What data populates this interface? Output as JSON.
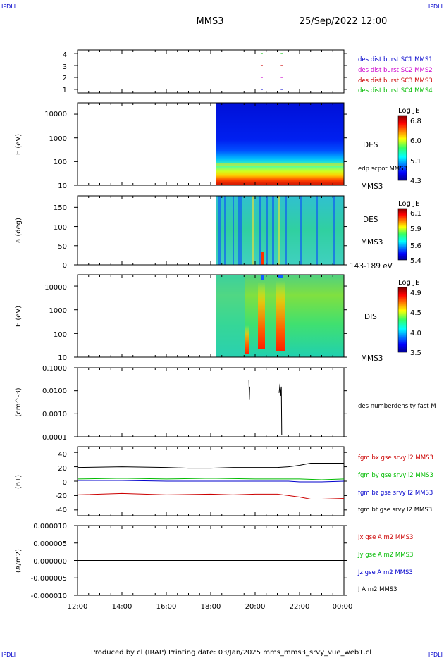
{
  "header": {
    "corner_tl": "IPDLI",
    "corner_tr": "IPDLI",
    "corner_bl": "IPDLI",
    "corner_br": "IPDLI",
    "spacecraft": "MMS3",
    "datetime": "25/Sep/2022 12:00"
  },
  "footer": {
    "credit": "Produced by cl (IRAP)   Printing date: 03/Jan/2025   mms_mms3_srvy_vue_web1.cl"
  },
  "chart_data": {
    "type": "multi-panel time series",
    "x_axis": {
      "range": [
        "12:00",
        "00:00"
      ],
      "tick_labels": [
        "12:00",
        "14:00",
        "16:00",
        "18:00",
        "20:00",
        "22:00",
        "00:00"
      ]
    },
    "panels": [
      {
        "id": "burst",
        "type": "scatter",
        "ylabel": "",
        "yticks": [
          "1",
          "2",
          "3",
          "4"
        ],
        "ylim": [
          0.7,
          4.3
        ],
        "legend": [
          {
            "name": "des dist burst SC1 MMS1",
            "color": "#0000cc",
            "row": 1
          },
          {
            "name": "des dist burst SC2 MMS2",
            "color": "#cc00cc",
            "row": 2
          },
          {
            "name": "des dist burst SC3 MMS3",
            "color": "#cc0000",
            "row": 3
          },
          {
            "name": "des dist burst SC4 MMS4",
            "color": "#00bb00",
            "row": 4
          }
        ],
        "events_hours": [
          20.3,
          21.2
        ]
      },
      {
        "id": "des-energy",
        "type": "heatmap",
        "ylabel": "E (eV)",
        "scale": "log",
        "ylim": [
          10,
          30000
        ],
        "yticks": [
          "10",
          "100",
          "1000",
          "10000"
        ],
        "data_start_hour": 18.25,
        "right_labels": [
          "DES",
          "edp scpot MMS3",
          "MMS3"
        ],
        "colorbar": {
          "title": "Log JE",
          "ticks": [
            "6.8",
            "6.0",
            "5.1",
            "4.3"
          ]
        }
      },
      {
        "id": "des-pitch",
        "type": "heatmap",
        "ylabel": "a (deg)",
        "ylim": [
          0,
          180
        ],
        "yticks": [
          "0",
          "50",
          "100",
          "150"
        ],
        "data_start_hour": 18.25,
        "right_labels": [
          "DES",
          "MMS3",
          "143-189 eV"
        ],
        "colorbar": {
          "title": "Log JE",
          "ticks": [
            "6.1",
            "5.9",
            "5.6",
            "5.4"
          ]
        }
      },
      {
        "id": "dis-energy",
        "type": "heatmap",
        "ylabel": "E (eV)",
        "scale": "log",
        "ylim": [
          10,
          30000
        ],
        "yticks": [
          "10",
          "100",
          "1000",
          "10000"
        ],
        "data_start_hour": 18.25,
        "right_labels": [
          "DIS",
          "MMS3"
        ],
        "colorbar": {
          "title": "Log JE",
          "ticks": [
            "4.9",
            "4.5",
            "4.0",
            "3.5"
          ]
        }
      },
      {
        "id": "density",
        "type": "line",
        "ylabel": "(cm^-3)",
        "scale": "log",
        "ylim": [
          0.0001,
          0.1
        ],
        "yticks": [
          "0.0001",
          "0.0010",
          "0.0100",
          "0.1000"
        ],
        "legend": [
          {
            "name": "des numberdensity fast M",
            "color": "#000000"
          }
        ],
        "segments": [
          {
            "x": [
              19.72,
              19.74,
              19.76
            ],
            "y": [
              0.03,
              0.004,
              0.015
            ]
          },
          {
            "x": [
              21.08,
              21.12,
              21.15,
              21.18,
              21.2
            ],
            "y": [
              0.008,
              0.02,
              0.006,
              0.015,
              0.00012
            ]
          }
        ]
      },
      {
        "id": "fgm",
        "type": "line",
        "ylabel": "(nT)",
        "ylim": [
          -48,
          48
        ],
        "yticks": [
          "-40",
          "-20",
          "0",
          "20",
          "40"
        ],
        "series": [
          {
            "name": "fgm bx gse srvy l2 MMS3",
            "color": "#cc0000",
            "x": [
              12,
              14,
              16,
              18,
              19,
              20,
              21,
              21.5,
              22,
              22.5,
              23,
              24
            ],
            "y": [
              -19,
              -17,
              -19,
              -18,
              -19,
              -18,
              -18,
              -20,
              -22,
              -25,
              -25,
              -24
            ]
          },
          {
            "name": "fgm by gse srvy l2 MMS3",
            "color": "#00bb00",
            "x": [
              12,
              14,
              16,
              18,
              20,
              22,
              23,
              24
            ],
            "y": [
              3,
              4,
              3,
              4,
              3,
              3,
              2,
              3
            ]
          },
          {
            "name": "fgm bz gse srvy l2 MMS3",
            "color": "#0000cc",
            "x": [
              12,
              14,
              16,
              18,
              20,
              21.5,
              22,
              23,
              24
            ],
            "y": [
              1,
              1,
              0,
              0,
              0,
              0,
              -1,
              -1,
              0
            ]
          },
          {
            "name": "fgm bt gse srvy l2 MMS3",
            "color": "#000000",
            "x": [
              12,
              14,
              16,
              17,
              18,
              19,
              20,
              21,
              21.5,
              22,
              22.5,
              23,
              24
            ],
            "y": [
              19,
              20,
              19,
              18,
              18,
              19,
              19,
              19,
              20,
              22,
              25,
              25,
              25
            ]
          }
        ]
      },
      {
        "id": "current",
        "type": "line",
        "ylabel": "(A/m2)",
        "ylim": [
          -1e-05,
          1e-05
        ],
        "yticks": [
          "-0.000010",
          "-0.000005",
          "0.000000",
          "0.000005",
          "0.000010"
        ],
        "series": [
          {
            "name": "Jx gse A m2 MMS3",
            "color": "#cc0000"
          },
          {
            "name": "Jy gse A m2 MMS3",
            "color": "#00bb00"
          },
          {
            "name": "Jz gse A m2 MMS3",
            "color": "#0000cc"
          },
          {
            "name": "J A m2 MMS3",
            "color": "#000000",
            "x": [
              12,
              24
            ],
            "y": [
              0,
              0
            ]
          }
        ]
      }
    ]
  }
}
